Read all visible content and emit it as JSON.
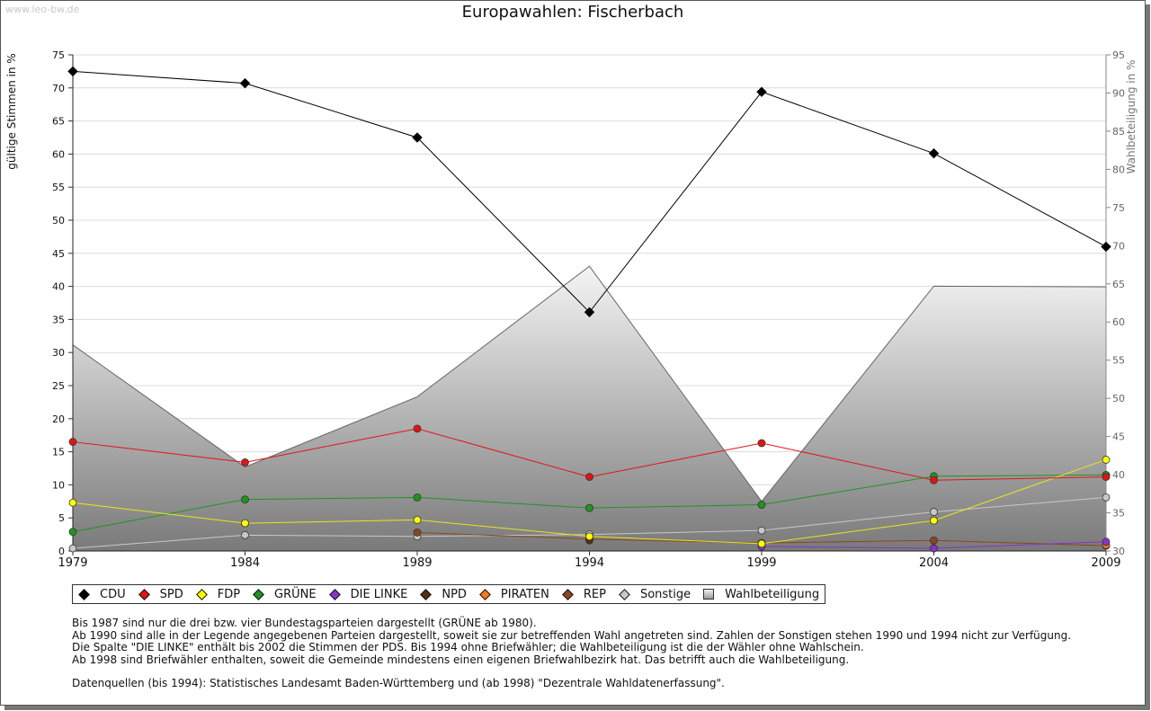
{
  "watermark": "www.leo-bw.de",
  "title": "Europawahlen: Fischerbach",
  "chart_data": {
    "type": "line",
    "title": "Europawahlen: Fischerbach",
    "ylabel": "gültige Stimmen in %",
    "ylabel_right": "Wahlbeteiligung in %",
    "categories": [
      "1979",
      "1984",
      "1989",
      "1994",
      "1999",
      "2004",
      "2009"
    ],
    "ylim": [
      0,
      75
    ],
    "yticks": [
      0,
      5,
      10,
      15,
      20,
      25,
      30,
      35,
      40,
      45,
      50,
      55,
      60,
      65,
      70,
      75
    ],
    "ylim_right": [
      30,
      95
    ],
    "yticks_right": [
      30,
      35,
      40,
      45,
      50,
      55,
      60,
      65,
      70,
      75,
      80,
      85,
      90,
      95
    ],
    "grid": true,
    "legend_position": "bottom",
    "series": [
      {
        "name": "CDU",
        "color": "#000000",
        "line": "#000000",
        "values": [
          72.5,
          70.7,
          62.5,
          36.1,
          69.4,
          60.1,
          46.0
        ]
      },
      {
        "name": "SPD",
        "color": "#e11414",
        "line": "#e11414",
        "values": [
          16.5,
          13.4,
          18.5,
          11.2,
          16.3,
          10.7,
          11.2
        ]
      },
      {
        "name": "FDP",
        "color": "#ffff00",
        "line": "#e6e61e",
        "values": [
          7.3,
          4.2,
          4.7,
          2.2,
          1.1,
          4.6,
          13.8
        ]
      },
      {
        "name": "GRÜNE",
        "color": "#1e961e",
        "line": "#1e961e",
        "values": [
          2.9,
          7.8,
          8.1,
          6.5,
          7.0,
          11.3,
          11.5
        ]
      },
      {
        "name": "DIE LINKE",
        "color": "#8c32c8",
        "line": "#8c32c8",
        "values": [
          null,
          null,
          null,
          null,
          0.7,
          0.4,
          1.4
        ]
      },
      {
        "name": "NPD",
        "color": "#503214",
        "line": "#503214",
        "values": [
          null,
          null,
          null,
          1.6,
          null,
          0.4,
          null
        ]
      },
      {
        "name": "PIRATEN",
        "color": "#ff7814",
        "line": "#ff7814",
        "values": [
          null,
          null,
          null,
          null,
          null,
          null,
          0.9
        ]
      },
      {
        "name": "REP",
        "color": "#8c461e",
        "line": "#8c461e",
        "values": [
          null,
          null,
          2.8,
          1.8,
          1.2,
          1.6,
          0.8
        ]
      },
      {
        "name": "Sonstige",
        "color": "#c8c8c8",
        "line": "#c8c8c8",
        "values": [
          0.4,
          2.4,
          2.2,
          2.5,
          3.1,
          5.9,
          8.1
        ]
      }
    ],
    "turnout": {
      "name": "Wahlbeteiligung",
      "values": [
        57.0,
        41.0,
        50.2,
        67.3,
        36.5,
        64.7,
        64.6
      ]
    }
  },
  "legend": [
    {
      "label": "CDU",
      "color": "#000000",
      "kind": "diamond"
    },
    {
      "label": "SPD",
      "color": "#e11414",
      "kind": "diamond"
    },
    {
      "label": "FDP",
      "color": "#ffff00",
      "kind": "diamond"
    },
    {
      "label": "GRÜNE",
      "color": "#1e961e",
      "kind": "diamond"
    },
    {
      "label": "DIE LINKE",
      "color": "#8c32c8",
      "kind": "diamond"
    },
    {
      "label": "NPD",
      "color": "#503214",
      "kind": "diamond"
    },
    {
      "label": "PIRATEN",
      "color": "#ff7814",
      "kind": "diamond"
    },
    {
      "label": "REP",
      "color": "#8c461e",
      "kind": "diamond"
    },
    {
      "label": "Sonstige",
      "color": "#c8c8c8",
      "kind": "diamond"
    },
    {
      "label": "Wahlbeteiligung",
      "color": "#b4b4b4",
      "kind": "box"
    }
  ],
  "notes": [
    "Bis 1987 sind nur die drei bzw. vier Bundestagsparteien dargestellt (GRÜNE ab 1980).",
    "Ab 1990 sind alle in der Legende angegebenen Parteien dargestellt, soweit sie zur betreffenden Wahl angetreten sind. Zahlen der Sonstigen stehen 1990 und 1994 nicht zur Verfügung.",
    "Die Spalte \"DIE LINKE\" enthält bis 2002 die Stimmen der PDS. Bis 1994 ohne Briefwähler; die Wahlbeteiligung ist die der Wähler ohne Wahlschein.",
    "Ab 1998 sind Briefwähler enthalten, soweit die Gemeinde mindestens einen eigenen Briefwahlbezirk hat. Das betrifft auch die Wahlbeteiligung."
  ],
  "source": "Datenquellen (bis 1994): Statistisches Landesamt Baden-Württemberg und (ab 1998) \"Dezentrale Wahldatenerfassung\"."
}
